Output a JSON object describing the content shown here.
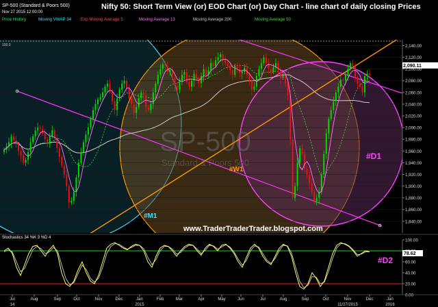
{
  "header": {
    "symbol": "SP-500 (Standard & Poors 500)",
    "datetime": "Nov 27 2015 12:00:00",
    "title": "Nifty 50: Short Term View (or) EOD Chart (or) Day Chart - line chart of daily closing Prices"
  },
  "legend": [
    {
      "label": "Price History",
      "color": "#00ff66"
    },
    {
      "label": "Moving VWAP 34",
      "color": "#40e0ff"
    },
    {
      "label": "Exp Moving Average 5",
      "color": "#ff4444"
    },
    {
      "label": "Moving Average 13",
      "color": "#ff77ff"
    },
    {
      "label": "Moving Average 200",
      "color": "#cccccc"
    },
    {
      "label": "Moving Average 50",
      "color": "#44dd44"
    }
  ],
  "watermark": {
    "main": "SP-500",
    "sub": "Standard & Poors 500"
  },
  "labels": {
    "url": "www.TraderTraderTrader.blogspot.com",
    "m1": "#M1",
    "w1": "#W1",
    "d1": "#D1",
    "d2": "#D2",
    "top_ref": "100.0"
  },
  "colors": {
    "up_bar": "#00dd00",
    "down_bar": "#ee1111",
    "m1_circle": "#40e0ff",
    "w1_circle": "#ff9900",
    "d1_circle": "#ff44ff",
    "channel": "#ff33ff",
    "trendline": "#ff9900",
    "price_tag_bg": "#ffffff",
    "stoch_k": "#ffff66",
    "stoch_d": "#cccccc"
  },
  "chart_data": [
    {
      "type": "candlestick",
      "title": "Nifty 50: Short Term View (or) EOD Chart (or) Day Chart - line chart of daily closing Prices",
      "ylim": [
        1820,
        2150
      ],
      "y_ticks": [
        "2,140.00",
        "2,120.00",
        "2,100.00",
        "2,080.00",
        "2,060.00",
        "2,040.00",
        "2,020.00",
        "2,000.00",
        "1,980.00",
        "1,960.00",
        "1,940.00",
        "1,920.00",
        "1,900.00",
        "1,880.00",
        "1,860.00",
        "1,840.00"
      ],
      "x_ticks": [
        "Jul",
        "Aug",
        "Sep",
        "Oct",
        "Nov",
        "Dec",
        "Jan",
        "Feb",
        "Mar",
        "Apr",
        "May",
        "Jun",
        "Jul",
        "Aug",
        "Sep",
        "Oct",
        "Nov",
        "Dec",
        "Jan"
      ],
      "x_ticks_bottom": [
        "14",
        "",
        "",
        "",
        "",
        "",
        "2015",
        "",
        "",
        "",
        "",
        "",
        "",
        "",
        "",
        "",
        "11/27/2015",
        "",
        "2016"
      ],
      "last_value_label": "2,090.11",
      "series": [
        {
          "name": "Price History",
          "close": [
            1962,
            1968,
            1975,
            1985,
            1978,
            1972,
            1960,
            1952,
            1940,
            1945,
            1958,
            1975,
            1985,
            1995,
            2000,
            1998,
            1990,
            1980,
            1975,
            1985,
            1995,
            1982,
            1965,
            1950,
            1935,
            1920,
            1900,
            1872,
            1875,
            1890,
            1915,
            1940,
            1958,
            1975,
            1988,
            2000,
            2015,
            2030,
            2040,
            2048,
            2052,
            2060,
            2070,
            2075,
            2062,
            2045,
            2030,
            2050,
            2065,
            2075,
            2080,
            2068,
            2050,
            2040,
            2025,
            2035,
            2050,
            2060,
            2055,
            2035,
            2030,
            2040,
            2060,
            2075,
            2090,
            2100,
            2108,
            2105,
            2095,
            2098,
            2085,
            2072,
            2065,
            2080,
            2090,
            2095,
            2078,
            2070,
            2080,
            2092,
            2085,
            2076,
            2088,
            2100,
            2090,
            2098,
            2110,
            2105,
            2115,
            2120,
            2125,
            2115,
            2110,
            2105,
            2098,
            2090,
            2105,
            2100,
            2093,
            2095,
            2102,
            2090,
            2080,
            2065,
            2070,
            2088,
            2100,
            2110,
            2120,
            2110,
            2100,
            2095,
            2103,
            2110,
            2098,
            2085,
            2090,
            2075,
            2055,
            1980,
            1880,
            1900,
            1940,
            1965,
            1955,
            1930,
            1920,
            1905,
            1890,
            1875,
            1880,
            1890,
            1920,
            1955,
            1990,
            2015,
            2030,
            2045,
            2060,
            2070,
            2082,
            2080,
            2090,
            2100,
            2110,
            2105,
            2085,
            2075,
            2070,
            2060,
            2088,
            2092,
            2090
          ]
        }
      ]
    },
    {
      "type": "line",
      "title": "Stochastics 34 %K 3 %D 4",
      "ylim": [
        0,
        100
      ],
      "y_ticks": [
        "100.00",
        "80.00",
        "60.00",
        "40.00",
        "20.00",
        "0.00"
      ],
      "overbought": 80,
      "oversold": 20,
      "last_value_label": "78.62",
      "series": [
        {
          "name": "%K",
          "values": [
            80,
            85,
            75,
            50,
            35,
            55,
            75,
            88,
            90,
            80,
            70,
            82,
            90,
            75,
            40,
            20,
            15,
            25,
            45,
            60,
            40,
            25,
            20,
            35,
            60,
            85,
            92,
            95,
            90,
            85,
            82,
            88,
            92,
            90,
            80,
            60,
            50,
            70,
            85,
            90,
            88,
            80,
            70,
            80,
            88,
            92,
            90,
            80,
            72,
            85,
            92,
            88,
            80,
            90,
            92,
            85,
            75,
            60,
            50,
            68,
            85,
            92,
            85,
            70,
            60,
            55,
            70,
            85,
            92,
            88,
            70,
            40,
            15,
            10,
            20,
            40,
            30,
            15,
            25,
            50,
            75,
            90,
            95,
            92,
            88,
            80,
            70,
            75,
            80,
            78
          ]
        },
        {
          "name": "%D",
          "values": [
            78,
            82,
            78,
            60,
            42,
            48,
            65,
            82,
            88,
            84,
            75,
            78,
            86,
            80,
            55,
            30,
            18,
            22,
            38,
            54,
            46,
            30,
            23,
            30,
            50,
            75,
            88,
            93,
            92,
            87,
            83,
            86,
            90,
            90,
            84,
            68,
            55,
            64,
            80,
            88,
            88,
            83,
            74,
            77,
            85,
            90,
            90,
            83,
            75,
            81,
            90,
            89,
            83,
            87,
            91,
            87,
            78,
            65,
            54,
            62,
            80,
            89,
            87,
            75,
            63,
            57,
            66,
            80,
            90,
            89,
            76,
            50,
            24,
            13,
            17,
            33,
            32,
            20,
            23,
            42,
            66,
            85,
            93,
            93,
            89,
            82,
            73,
            74,
            78,
            78
          ]
        }
      ]
    }
  ]
}
